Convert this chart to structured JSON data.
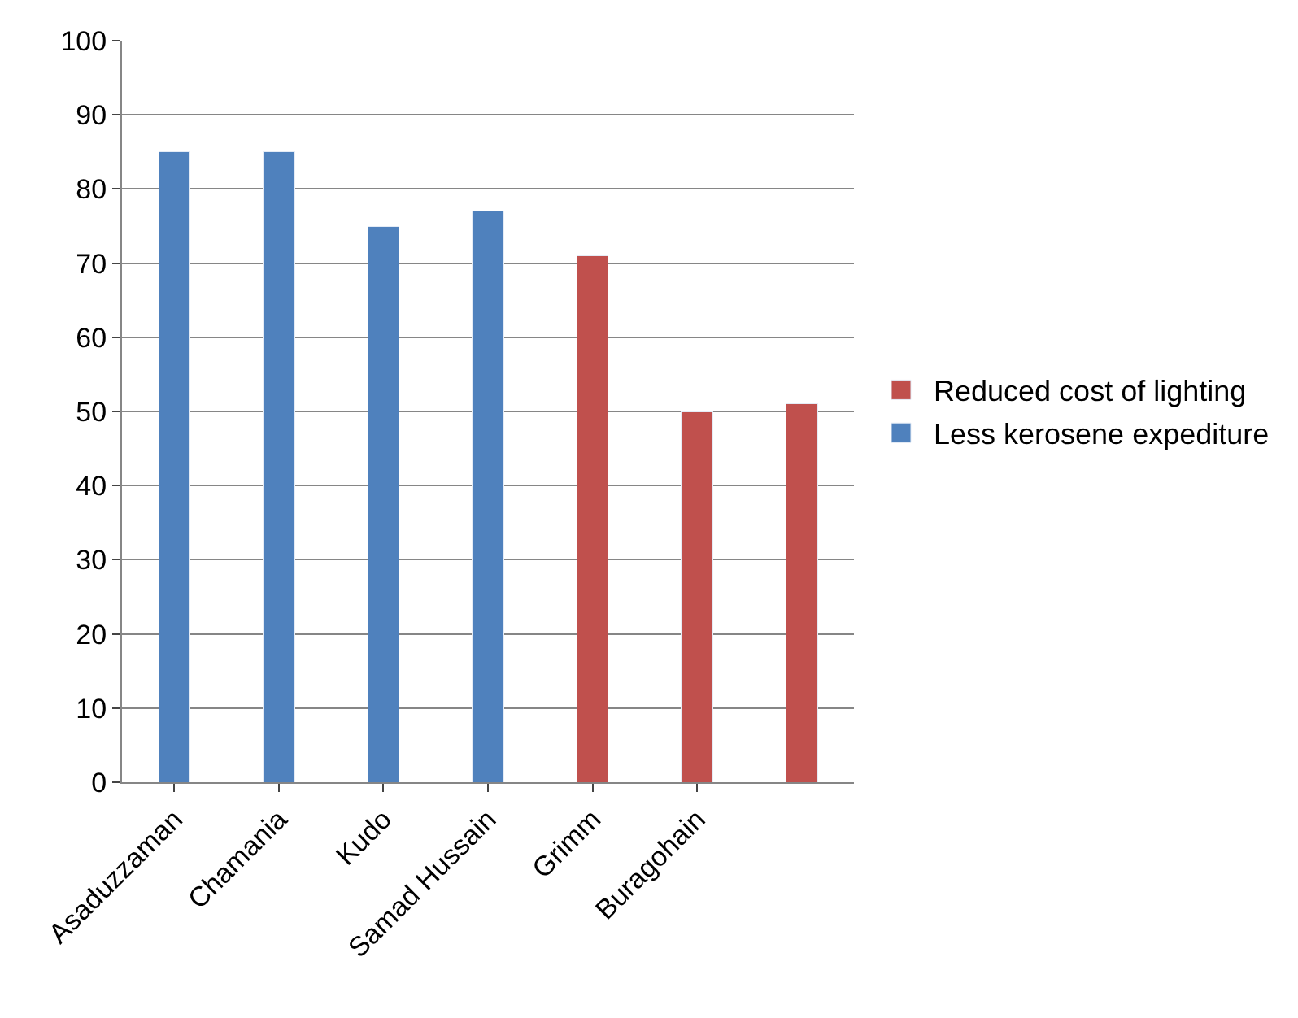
{
  "chart_data": {
    "type": "bar",
    "stacked": true,
    "categories": [
      "Asaduzzaman",
      "Chamania",
      "Kudo",
      "Samad Hussain",
      "Grimm",
      "Buragohain",
      null
    ],
    "series": [
      {
        "name": "Less kerosene expediture",
        "color": "#4f81bd",
        "values": [
          85,
          85,
          75,
          77,
          null,
          null,
          null
        ]
      },
      {
        "name": "Reduced cost of lighting",
        "color": "#c0504d",
        "values": [
          null,
          null,
          null,
          null,
          71,
          50,
          51
        ]
      }
    ],
    "ylim": [
      0,
      100
    ],
    "yticks": [
      0,
      10,
      20,
      30,
      40,
      50,
      60,
      70,
      80,
      90,
      100
    ],
    "grid": "y",
    "legend": "right"
  }
}
